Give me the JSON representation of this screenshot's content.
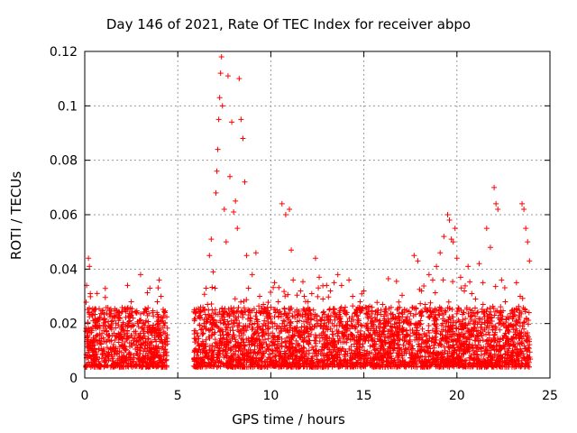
{
  "chart_data": {
    "type": "scatter",
    "title": "Day 146 of 2021, Rate Of TEC Index for receiver abpo",
    "xlabel": "GPS time / hours",
    "ylabel": "ROTI / TECUs",
    "xlim": [
      0,
      25
    ],
    "ylim": [
      0,
      0.12
    ],
    "xticks": [
      0,
      5,
      10,
      15,
      20,
      25
    ],
    "yticks": [
      0,
      0.02,
      0.04,
      0.06,
      0.08,
      0.1,
      0.12
    ],
    "xtick_labels": [
      "0",
      "5",
      "10",
      "15",
      "20",
      "25"
    ],
    "ytick_labels": [
      "0",
      "0.02",
      "0.04",
      "0.06",
      "0.08",
      "0.1",
      "0.12"
    ],
    "grid": true,
    "marker": "+",
    "color": "#ff0000",
    "series": [
      {
        "x": [
          0.1,
          0.2,
          0.25,
          0.3,
          0.35,
          0.5,
          0.6,
          0.8,
          1.0,
          1.2,
          1.5,
          1.8,
          2.0,
          2.3,
          2.5,
          2.6,
          2.8,
          3.0,
          3.1,
          3.3,
          3.5,
          3.7,
          3.9,
          4.0,
          4.1,
          4.2,
          4.3,
          4.35,
          5.9,
          6.0,
          6.2,
          6.3,
          6.5,
          6.6,
          6.7,
          6.8,
          6.9,
          7.0,
          7.05,
          7.1,
          7.15,
          7.2,
          7.25,
          7.3,
          7.35,
          7.4,
          7.5,
          7.6,
          7.7,
          7.8,
          7.9,
          8.0,
          8.1,
          8.2,
          8.3,
          8.4,
          8.5,
          8.6,
          8.7,
          8.8,
          8.9,
          9.0,
          9.2,
          9.4,
          9.6,
          9.8,
          10.0,
          10.2,
          10.4,
          10.6,
          10.8,
          11.0,
          11.1,
          11.2,
          11.4,
          11.6,
          11.8,
          12.0,
          12.2,
          12.4,
          12.6,
          12.8,
          13.0,
          13.2,
          13.4,
          13.6,
          13.8,
          14.0,
          14.2,
          14.4,
          14.6,
          14.8,
          15.0,
          15.2,
          15.4,
          15.6,
          15.8,
          16.0,
          16.2,
          16.4,
          16.6,
          16.9,
          17.1,
          17.3,
          17.5,
          17.7,
          17.9,
          18.1,
          18.3,
          18.5,
          18.7,
          18.9,
          19.1,
          19.3,
          19.5,
          19.6,
          19.7,
          19.8,
          19.9,
          20.0,
          20.2,
          20.4,
          20.6,
          20.8,
          21.0,
          21.2,
          21.4,
          21.6,
          21.8,
          22.0,
          22.1,
          22.2,
          22.4,
          22.6,
          22.8,
          23.0,
          23.2,
          23.4,
          23.5,
          23.6,
          23.7,
          23.8,
          23.9
        ],
        "y": [
          0.034,
          0.044,
          0.041,
          0.031,
          0.018,
          0.025,
          0.014,
          0.022,
          0.019,
          0.016,
          0.021,
          0.015,
          0.018,
          0.034,
          0.028,
          0.022,
          0.024,
          0.038,
          0.02,
          0.025,
          0.033,
          0.018,
          0.028,
          0.036,
          0.03,
          0.022,
          0.014,
          0.012,
          0.021,
          0.014,
          0.023,
          0.012,
          0.018,
          0.027,
          0.045,
          0.051,
          0.039,
          0.033,
          0.068,
          0.076,
          0.084,
          0.095,
          0.103,
          0.112,
          0.118,
          0.1,
          0.062,
          0.05,
          0.111,
          0.074,
          0.094,
          0.061,
          0.065,
          0.055,
          0.11,
          0.095,
          0.088,
          0.072,
          0.045,
          0.033,
          0.024,
          0.038,
          0.046,
          0.03,
          0.027,
          0.022,
          0.026,
          0.035,
          0.028,
          0.064,
          0.06,
          0.062,
          0.047,
          0.036,
          0.025,
          0.032,
          0.03,
          0.028,
          0.031,
          0.044,
          0.037,
          0.029,
          0.034,
          0.032,
          0.035,
          0.038,
          0.034,
          0.026,
          0.036,
          0.03,
          0.025,
          0.028,
          0.032,
          0.018,
          0.022,
          0.016,
          0.019,
          0.017,
          0.02,
          0.015,
          0.014,
          0.018,
          0.016,
          0.021,
          0.02,
          0.045,
          0.043,
          0.032,
          0.027,
          0.038,
          0.036,
          0.041,
          0.046,
          0.052,
          0.06,
          0.058,
          0.051,
          0.05,
          0.055,
          0.044,
          0.037,
          0.032,
          0.041,
          0.031,
          0.029,
          0.042,
          0.035,
          0.055,
          0.048,
          0.07,
          0.064,
          0.062,
          0.036,
          0.028,
          0.022,
          0.025,
          0.035,
          0.03,
          0.064,
          0.062,
          0.055,
          0.05,
          0.043
        ]
      }
    ]
  }
}
